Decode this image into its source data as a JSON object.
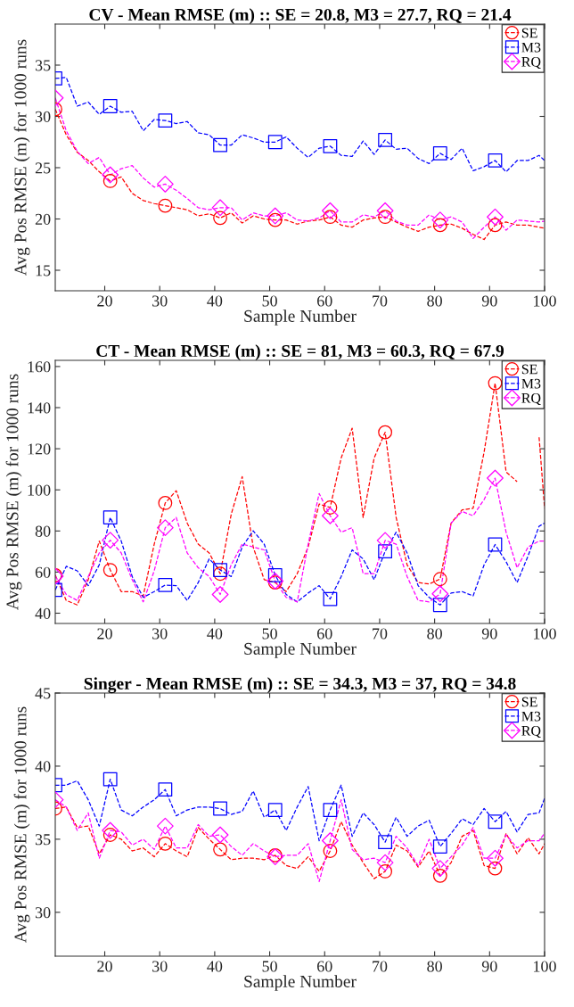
{
  "chart_data": [
    {
      "type": "line",
      "title": "CV - Mean RMSE (m) :: SE = 20.8, M3 = 27.7, RQ = 21.4",
      "xlabel": "Sample Number",
      "ylabel": "Avg Pos RMSE (m) for 1000 runs",
      "x": [
        11,
        13,
        15,
        17,
        19,
        21,
        23,
        25,
        27,
        29,
        31,
        33,
        35,
        37,
        39,
        41,
        43,
        45,
        47,
        49,
        51,
        53,
        55,
        57,
        59,
        61,
        63,
        65,
        67,
        69,
        71,
        73,
        75,
        77,
        79,
        81,
        83,
        85,
        87,
        89,
        91,
        93,
        95,
        97,
        99,
        100
      ],
      "xlim": [
        11,
        100
      ],
      "xticks": [
        20,
        30,
        40,
        50,
        60,
        70,
        80,
        90,
        100
      ],
      "ylim": [
        13,
        39
      ],
      "yticks": [
        15,
        20,
        25,
        30,
        35
      ],
      "legend": "top right",
      "line_style": "dashed",
      "grid": false,
      "series": [
        {
          "name": "SE",
          "color": "#ff0000",
          "values": [
            30.7,
            28.2,
            26.5,
            25.7,
            24.6,
            23.7,
            24.1,
            22.5,
            21.8,
            21.5,
            21.3,
            21.1,
            20.9,
            20.3,
            20.5,
            20.1,
            20.6,
            19.6,
            20.3,
            20.0,
            19.9,
            19.9,
            19.5,
            19.8,
            19.9,
            20.2,
            19.4,
            19.2,
            19.9,
            20.1,
            20.2,
            19.7,
            19.2,
            18.8,
            19.2,
            19.4,
            19.5,
            19.1,
            18.5,
            18.0,
            19.4,
            19.7,
            19.4,
            19.4,
            19.2,
            19.1
          ]
        },
        {
          "type": "scatter",
          "color": "#ff0000",
          "marker": "circle",
          "x": [
            11,
            21,
            31,
            41,
            51,
            61,
            71,
            81,
            91
          ],
          "values": [
            30.7,
            23.7,
            21.3,
            20.1,
            19.9,
            20.2,
            20.2,
            19.4,
            19.4
          ]
        },
        {
          "name": "M3",
          "color": "#0000ff",
          "values": [
            33.7,
            33.8,
            31.0,
            31.4,
            30.2,
            31.0,
            30.4,
            30.5,
            28.6,
            29.7,
            29.6,
            29.3,
            29.5,
            28.4,
            28.2,
            27.2,
            27.2,
            28.2,
            27.9,
            27.5,
            27.5,
            28.0,
            26.9,
            26.0,
            26.9,
            27.1,
            26.2,
            26.1,
            27.6,
            26.3,
            27.7,
            26.8,
            26.9,
            25.9,
            25.4,
            26.4,
            25.8,
            26.9,
            24.7,
            25.1,
            25.7,
            24.6,
            25.7,
            25.7,
            26.2,
            25.7
          ]
        },
        {
          "type": "scatter",
          "color": "#0000ff",
          "marker": "square",
          "x": [
            11,
            21,
            31,
            41,
            51,
            61,
            71,
            81,
            91
          ],
          "values": [
            33.7,
            31.0,
            29.6,
            27.2,
            27.5,
            27.1,
            27.7,
            26.4,
            25.7
          ]
        },
        {
          "name": "RQ",
          "color": "#ff00ff",
          "values": [
            31.8,
            28.6,
            26.6,
            25.4,
            26.0,
            24.3,
            24.9,
            25.2,
            24.0,
            23.1,
            23.4,
            22.8,
            22.0,
            21.1,
            20.9,
            21.1,
            21.1,
            19.9,
            20.6,
            20.3,
            20.3,
            20.6,
            19.9,
            19.8,
            20.1,
            20.8,
            19.7,
            19.7,
            20.4,
            20.2,
            20.8,
            19.8,
            19.4,
            19.4,
            20.4,
            19.9,
            20.2,
            19.7,
            18.1,
            19.2,
            20.2,
            18.9,
            19.9,
            19.8,
            19.7,
            19.8
          ]
        },
        {
          "type": "scatter",
          "color": "#ff00ff",
          "marker": "diamond",
          "x": [
            11,
            21,
            31,
            41,
            51,
            61,
            71,
            81,
            91
          ],
          "values": [
            31.8,
            24.3,
            23.4,
            21.1,
            20.3,
            20.8,
            20.8,
            19.9,
            20.2
          ]
        }
      ]
    },
    {
      "type": "line",
      "title": "CT - Mean RMSE (m) :: SE = 81, M3 = 60.3, RQ = 67.9",
      "xlabel": "Sample Number",
      "ylabel": "Avg Pos RMSE (m) for 1000 runs",
      "x": [
        11,
        13,
        15,
        17,
        19,
        21,
        23,
        25,
        27,
        29,
        31,
        33,
        35,
        37,
        39,
        41,
        43,
        45,
        47,
        49,
        51,
        53,
        55,
        57,
        59,
        61,
        63,
        65,
        67,
        69,
        71,
        73,
        75,
        77,
        79,
        81,
        83,
        85,
        87,
        89,
        91,
        93,
        95,
        97,
        99,
        100
      ],
      "xlim": [
        11,
        100
      ],
      "xticks": [
        20,
        30,
        40,
        50,
        60,
        70,
        80,
        90,
        100
      ],
      "ylim": [
        35,
        163
      ],
      "yticks": [
        40,
        60,
        80,
        100,
        120,
        140,
        160
      ],
      "legend": "top right",
      "line_style": "dashed",
      "grid": false,
      "series": [
        {
          "name": "SE",
          "color": "#ff0000",
          "values": [
            58.5,
            46.2,
            44,
            56.3,
            75.1,
            61,
            50.5,
            50.5,
            48.4,
            73.6,
            93.6,
            99.6,
            83.8,
            73.6,
            69.3,
            59.2,
            88.1,
            106.4,
            72.2,
            56.3,
            54.9,
            50.5,
            59.2,
            72.2,
            93.1,
            91.4,
            115.5,
            130,
            86.6,
            115.5,
            128,
            86.6,
            63.5,
            54.9,
            54.2,
            56.6,
            83.8,
            90.3,
            91,
            118.4,
            151.9,
            108.7,
            104,
            null,
            125.6,
            91
          ]
        },
        {
          "type": "scatter",
          "color": "#ff0000",
          "marker": "circle",
          "x": [
            11,
            21,
            31,
            41,
            51,
            61,
            71,
            81,
            91
          ],
          "values": [
            58.5,
            61,
            93.6,
            59.2,
            54.9,
            91.4,
            128,
            56.6,
            151.9
          ]
        },
        {
          "name": "M3",
          "color": "#0000ff",
          "values": [
            51.3,
            62.8,
            60.6,
            53.4,
            63.5,
            86.6,
            75.1,
            57.8,
            47.7,
            50.5,
            53.7,
            53.4,
            46.2,
            54.9,
            66.4,
            61,
            57.8,
            72.2,
            80.1,
            73.6,
            58.5,
            49.1,
            45.5,
            49.8,
            53.4,
            46.9,
            57.8,
            70.8,
            66.4,
            56.3,
            70.1,
            79.4,
            69.3,
            53.4,
            47.7,
            44,
            49.8,
            50.5,
            48.4,
            63.5,
            73.4,
            65,
            54.9,
            67.9,
            82.3,
            83.8
          ]
        },
        {
          "type": "scatter",
          "color": "#0000ff",
          "marker": "square",
          "x": [
            11,
            21,
            31,
            41,
            51,
            61,
            71,
            81,
            91
          ],
          "values": [
            51.3,
            86.6,
            53.7,
            61,
            58.5,
            46.9,
            70.1,
            44,
            73.4
          ]
        },
        {
          "name": "RQ",
          "color": "#ff00ff",
          "values": [
            58,
            49.1,
            46.2,
            57.8,
            69.3,
            75.5,
            69.3,
            56.3,
            45.5,
            60.6,
            81.6,
            86.6,
            69.3,
            62.1,
            57.8,
            49.1,
            63.5,
            73.6,
            72.2,
            70.8,
            55.6,
            47.7,
            45.5,
            73.6,
            98.2,
            87.4,
            79.4,
            81.6,
            59.2,
            59.2,
            75.4,
            73.6,
            57.8,
            46.2,
            45.5,
            49.4,
            83.8,
            89.5,
            87.4,
            95.3,
            105.7,
            79.4,
            62.1,
            72.2,
            75.1,
            75.1
          ]
        },
        {
          "type": "scatter",
          "color": "#ff00ff",
          "marker": "diamond",
          "x": [
            11,
            21,
            31,
            41,
            51,
            61,
            71,
            81,
            91
          ],
          "values": [
            58,
            75.5,
            81.6,
            49.1,
            55.6,
            87.4,
            75.4,
            49.4,
            105.7
          ]
        }
      ]
    },
    {
      "type": "line",
      "title": "Singer - Mean RMSE (m) :: SE = 34.3, M3 = 37, RQ = 34.8",
      "xlabel": "Sample Number",
      "ylabel": "Avg Pos RMSE (m) for 1000 runs",
      "x": [
        11,
        13,
        15,
        17,
        19,
        21,
        23,
        25,
        27,
        29,
        31,
        33,
        35,
        37,
        39,
        41,
        43,
        45,
        47,
        49,
        51,
        53,
        55,
        57,
        59,
        61,
        63,
        65,
        67,
        69,
        71,
        73,
        75,
        77,
        79,
        81,
        83,
        85,
        87,
        89,
        91,
        93,
        95,
        97,
        99,
        100
      ],
      "xlim": [
        11,
        100
      ],
      "xticks": [
        20,
        30,
        40,
        50,
        60,
        70,
        80,
        90,
        100
      ],
      "ylim": [
        27,
        45
      ],
      "yticks": [
        30,
        35,
        40,
        45
      ],
      "legend": "top right",
      "line_style": "dashed",
      "grid": false,
      "series": [
        {
          "name": "SE",
          "color": "#ff0000",
          "values": [
            37.1,
            37.2,
            35.8,
            35.9,
            34.0,
            35.3,
            35,
            34.2,
            34.4,
            33.8,
            34.7,
            34.2,
            33.8,
            35.8,
            35,
            34.3,
            33.6,
            33.7,
            33.7,
            33.6,
            33.9,
            33.2,
            33.0,
            33.8,
            32.8,
            34.2,
            36.2,
            34.6,
            33.4,
            32.3,
            32.8,
            34.6,
            34.2,
            33.1,
            34.2,
            32.5,
            33.4,
            35.2,
            35.6,
            33.2,
            33.0,
            35.4,
            34.0,
            35.1,
            34.0,
            34.7
          ]
        },
        {
          "type": "scatter",
          "color": "#ff0000",
          "marker": "circle",
          "x": [
            11,
            21,
            31,
            41,
            51,
            61,
            71,
            81,
            91
          ],
          "values": [
            37.1,
            35.3,
            34.7,
            34.3,
            33.9,
            34.2,
            32.8,
            32.5,
            33.0
          ]
        },
        {
          "name": "M3",
          "color": "#0000ff",
          "values": [
            38.7,
            38.7,
            39.0,
            37.7,
            35.9,
            39.1,
            37.0,
            36.6,
            37.2,
            37.7,
            38.4,
            36.6,
            37.0,
            37.2,
            37.2,
            37.1,
            36.7,
            36.9,
            38.3,
            36.5,
            37.0,
            35.6,
            37.2,
            38.6,
            34.9,
            37.0,
            38.7,
            35.2,
            36.8,
            36.0,
            34.8,
            36.5,
            35.2,
            35.9,
            36.3,
            34.5,
            35.4,
            36.4,
            36.0,
            37.1,
            36.2,
            36.9,
            35.5,
            36.7,
            36.8,
            37.8
          ]
        },
        {
          "type": "scatter",
          "color": "#0000ff",
          "marker": "square",
          "x": [
            11,
            21,
            31,
            41,
            51,
            61,
            71,
            81,
            91
          ],
          "values": [
            38.7,
            39.1,
            38.4,
            37.1,
            37.0,
            37.0,
            34.8,
            34.5,
            36.2
          ]
        },
        {
          "name": "RQ",
          "color": "#ff00ff",
          "values": [
            37.7,
            37.2,
            35.6,
            36.8,
            33.7,
            35.6,
            35.5,
            34.6,
            35,
            34.3,
            35.9,
            34.4,
            34.4,
            36.0,
            35.2,
            35.3,
            34.5,
            33.9,
            34.7,
            34.2,
            33.8,
            33.9,
            33.9,
            34.7,
            32.1,
            34.9,
            37.7,
            34.3,
            33.6,
            33.7,
            33.4,
            35.2,
            34.4,
            33.2,
            35.0,
            33.0,
            33.8,
            34.6,
            35.8,
            33.7,
            33.7,
            35.3,
            34.4,
            34.9,
            34.9,
            35.4
          ]
        },
        {
          "type": "scatter",
          "color": "#ff00ff",
          "marker": "diamond",
          "x": [
            11,
            21,
            31,
            41,
            51,
            61,
            71,
            81,
            91
          ],
          "values": [
            37.7,
            35.6,
            35.9,
            35.3,
            33.8,
            34.9,
            33.4,
            33.0,
            33.7
          ]
        }
      ]
    }
  ]
}
